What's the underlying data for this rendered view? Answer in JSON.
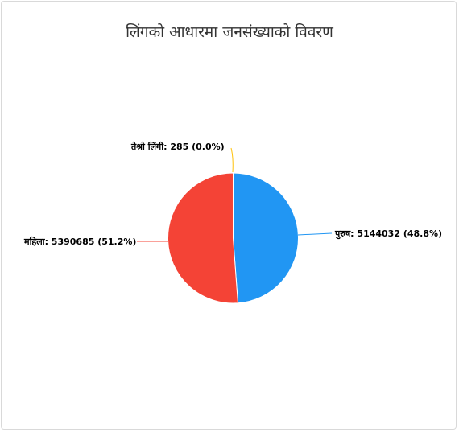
{
  "chart_data": {
    "type": "pie",
    "title": "लिंगको आधारमा जनसंख्याको विवरण",
    "slices": [
      {
        "name": "पुरुष",
        "value": 5144032,
        "percent": "48.8%",
        "color": "#2196f3",
        "label": "पुरुष: 5144032 (48.8%)"
      },
      {
        "name": "महिला",
        "value": 5390685,
        "percent": "51.2%",
        "color": "#f44336",
        "label": "महिला: 5390685 (51.2%)"
      },
      {
        "name": "तेश्रो लिंगी",
        "value": 285,
        "percent": "0.0%",
        "color": "#ffc107",
        "label": "तेश्रो लिंगी: 285 (0.0%)"
      }
    ],
    "legend": "none"
  }
}
